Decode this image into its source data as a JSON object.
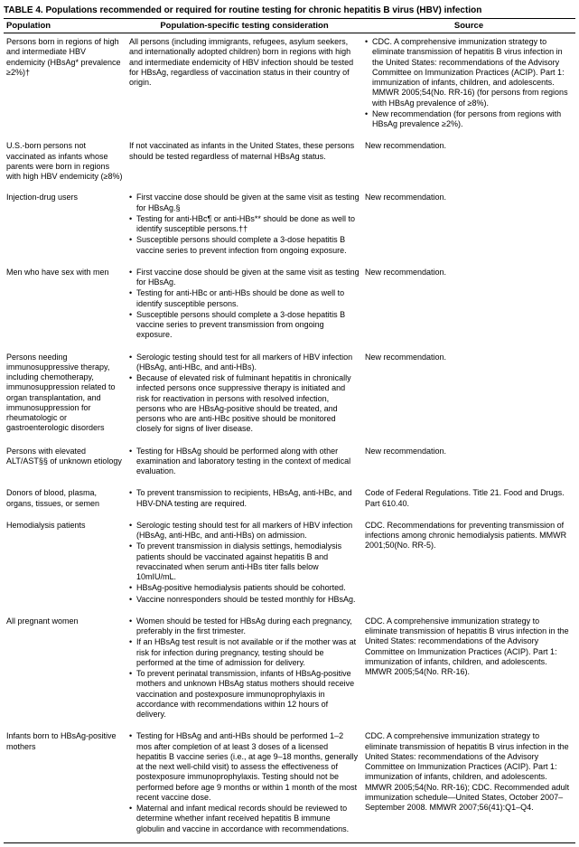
{
  "caption": "TABLE 4. Populations recommended or required for routine testing for chronic hepatitis B virus (HBV) infection",
  "headers": {
    "population": "Population",
    "consideration": "Population-specific testing consideration",
    "source": "Source"
  },
  "rows": [
    {
      "population": "Persons born in regions of high and intermediate HBV endemicity (HBsAg* prevalence ≥2%)†",
      "consideration_plain": "All persons (including immigrants, refugees, asylum seekers, and internationally adopted children) born in regions with high and intermediate endemicity of HBV infection should be tested for HBsAg, regardless of vaccination status in their country of origin.",
      "source_bullets": [
        "CDC. A comprehensive immunization strategy to eliminate transmission of hepatitis B virus infection in the United States: recommendations of the Advisory Committee on Immunization Practices (ACIP). Part 1: immunization of infants, children, and adolescents. MMWR 2005;54(No. RR-16) (for persons from regions with HBsAg prevalence of ≥8%).",
        "New recommendation (for persons from regions with HBsAg prevalence ≥2%)."
      ]
    },
    {
      "population": "U.S.-born persons not vaccinated as infants whose parents were born in regions with high HBV endemicity (≥8%)",
      "consideration_plain": "If not vaccinated as infants in the United States, these persons should be tested regardless of maternal HBsAg status.",
      "source_plain": "New recommendation."
    },
    {
      "population": "Injection-drug users",
      "consideration_bullets": [
        "First vaccine dose should be given at the same visit as testing for HBsAg.§",
        "Testing for anti-HBc¶ or anti-HBs** should be done as well to identify susceptible persons.††",
        "Susceptible persons should complete a 3-dose hepatitis B vaccine series to prevent infection from ongoing exposure."
      ],
      "source_plain": "New recommendation."
    },
    {
      "population": "Men who have sex with men",
      "consideration_bullets": [
        "First vaccine dose should be given at the same visit as testing for HBsAg.",
        "Testing for anti-HBc or anti-HBs should be done as well to identify susceptible persons.",
        "Susceptible persons should complete a 3-dose hepatitis B vaccine series to prevent transmission from ongoing exposure."
      ],
      "source_plain": "New recommendation."
    },
    {
      "population": "Persons needing immunosuppressive therapy, including chemotherapy, immunosuppression related to organ transplantation, and immunosuppression for rheumatologic or gastroenterologic disorders",
      "consideration_bullets": [
        "Serologic testing should test for all markers of HBV infection (HBsAg, anti-HBc, and anti-HBs).",
        "Because of elevated risk of fulminant hepatitis in chronically infected persons once suppressive therapy is initiated and risk for reactivation in persons with resolved infection, persons who are HBsAg-positive should be treated, and persons who are anti-HBc positive should be monitored closely for signs of liver disease."
      ],
      "source_plain": "New recommendation."
    },
    {
      "population": "Persons with elevated ALT/AST§§ of unknown etiology",
      "consideration_bullets": [
        "Testing for HBsAg should be performed along with other examination and laboratory testing in the context of medical evaluation."
      ],
      "source_plain": "New recommendation."
    },
    {
      "population": "Donors of blood, plasma, organs, tissues, or semen",
      "consideration_bullets": [
        "To prevent transmission to recipients, HBsAg, anti-HBc, and HBV-DNA testing are required."
      ],
      "source_plain": "Code of Federal Regulations. Title 21. Food and Drugs. Part 610.40."
    },
    {
      "population": "Hemodialysis patients",
      "consideration_bullets": [
        "Serologic testing should test for all markers of HBV infection (HBsAg, anti-HBc, and anti-HBs) on admission.",
        "To prevent transmission in dialysis settings, hemodialysis patients should be vaccinated against hepatitis B and revaccinated when serum anti-HBs titer falls below 10mIU/mL.",
        "HBsAg-positive hemodialysis patients should be cohorted.",
        "Vaccine nonresponders should be tested monthly for HBsAg."
      ],
      "source_plain": "CDC. Recommendations for preventing transmission of infections among chronic hemodialysis patients. MMWR 2001;50(No. RR-5)."
    },
    {
      "population": "All pregnant women",
      "consideration_bullets": [
        "Women should be tested for HBsAg during each pregnancy, preferably in the first trimester.",
        "If an HBsAg test result is not available or if the mother was at risk for infection during pregnancy, testing should be performed at the time of admission for delivery.",
        "To prevent perinatal transmission, infants of HBsAg-positive mothers and unknown HBsAg status mothers should receive vaccination and postexposure immunoprophylaxis in accordance with recommendations within 12 hours of delivery."
      ],
      "source_plain": "CDC. A comprehensive immunization strategy to eliminate transmission of hepatitis B virus infection in the United States: recommendations of the Advisory Committee on Immunization Practices (ACIP). Part 1: immunization of infants, children, and adolescents. MMWR 2005;54(No. RR-16)."
    },
    {
      "population": "Infants born to HBsAg-positive mothers",
      "consideration_bullets": [
        "Testing for HBsAg and anti-HBs should be performed 1–2 mos after completion of at least 3 doses of a licensed hepatitis B vaccine series (i.e., at age 9–18 months, generally at the next well-child visit) to assess the effectiveness of postexposure immunoprophylaxis. Testing should not be performed before age 9 months or within 1 month of the most recent vaccine dose.",
        "Maternal and infant medical records should be reviewed to determine whether infant received hepatitis B immune globulin and vaccine in accordance with recommendations."
      ],
      "source_plain": "CDC. A comprehensive immunization strategy to eliminate transmission of hepatitis B virus infection in the United States: recommendations of the Advisory Committee on Immunization Practices (ACIP). Part 1: immunization of infants, children, and adolescents. MMWR 2005;54(No. RR-16); CDC. Recommended adult immunization schedule—United States, October 2007–September 2008. MMWR 2007;56(41):Q1–Q4."
    }
  ]
}
